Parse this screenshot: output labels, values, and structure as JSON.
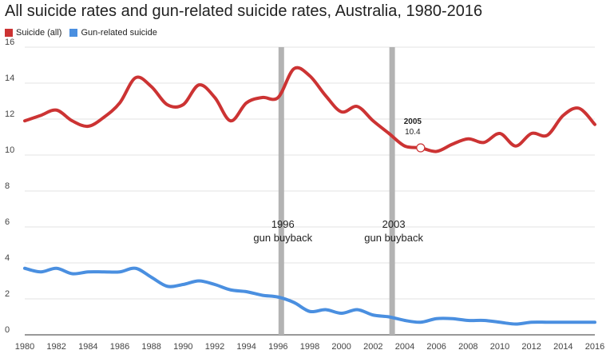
{
  "chart_data": {
    "type": "line",
    "title": "All suicide rates and gun-related suicide rates, Australia, 1980-2016",
    "xlabel": "",
    "ylabel": "",
    "xlim": [
      1980,
      2016
    ],
    "ylim": [
      0,
      16
    ],
    "yticks": [
      "0",
      "2",
      "4",
      "6",
      "8",
      "10",
      "12",
      "14",
      "16"
    ],
    "xticks": [
      "1980",
      "1982",
      "1984",
      "1986",
      "1988",
      "1990",
      "1992",
      "1994",
      "1996",
      "1998",
      "2000",
      "2002",
      "2004",
      "2006",
      "2008",
      "2010",
      "2012",
      "2014",
      "2016"
    ],
    "grid": true,
    "legend_position": "top-left",
    "x": [
      1980,
      1981,
      1982,
      1983,
      1984,
      1985,
      1986,
      1987,
      1988,
      1989,
      1990,
      1991,
      1992,
      1993,
      1994,
      1995,
      1996,
      1997,
      1998,
      1999,
      2000,
      2001,
      2002,
      2003,
      2004,
      2005,
      2006,
      2007,
      2008,
      2009,
      2010,
      2011,
      2012,
      2013,
      2014,
      2015,
      2016
    ],
    "series": [
      {
        "name": "Suicide (all)",
        "color": "#cc3333",
        "values": [
          11.9,
          12.2,
          12.5,
          11.9,
          11.6,
          12.1,
          12.9,
          14.3,
          13.8,
          12.8,
          12.8,
          13.9,
          13.2,
          11.9,
          12.9,
          13.2,
          13.2,
          14.8,
          14.4,
          13.3,
          12.4,
          12.7,
          11.9,
          11.2,
          10.5,
          10.4,
          10.2,
          10.6,
          10.9,
          10.7,
          11.2,
          10.5,
          11.2,
          11.1,
          12.2,
          12.6,
          11.7
        ]
      },
      {
        "name": "Gun-related suicide",
        "color": "#4a8fe0",
        "values": [
          3.7,
          3.5,
          3.7,
          3.4,
          3.5,
          3.5,
          3.5,
          3.7,
          3.2,
          2.7,
          2.8,
          3.0,
          2.8,
          2.5,
          2.4,
          2.2,
          2.1,
          1.8,
          1.3,
          1.4,
          1.2,
          1.4,
          1.1,
          1.0,
          0.8,
          0.7,
          0.9,
          0.9,
          0.8,
          0.8,
          0.7,
          0.6,
          0.7,
          0.7,
          0.7,
          0.7,
          0.7
        ]
      }
    ],
    "annotations": [
      {
        "x": 1996.2,
        "line1": "1996",
        "line2": "gun buyback"
      },
      {
        "x": 2003.2,
        "line1": "2003",
        "line2": "gun buyback"
      }
    ],
    "tooltip": {
      "x": 2005,
      "label": "2005",
      "value": "10.4"
    }
  }
}
